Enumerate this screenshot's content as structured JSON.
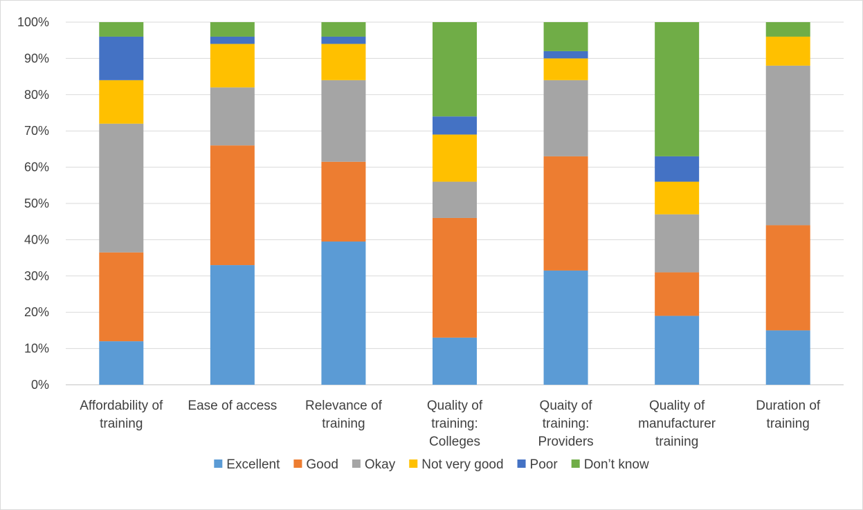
{
  "chart_data": {
    "type": "bar",
    "stacked": true,
    "percent": true,
    "title": "",
    "xlabel": "",
    "ylabel": "",
    "ylim": [
      0,
      100
    ],
    "y_ticks": [
      "0%",
      "10%",
      "20%",
      "30%",
      "40%",
      "50%",
      "60%",
      "70%",
      "80%",
      "90%",
      "100%"
    ],
    "grid": true,
    "legend_position": "bottom",
    "categories": [
      [
        "Affordability of",
        "training"
      ],
      [
        "Ease of access"
      ],
      [
        "Relevance of",
        "training"
      ],
      [
        "Quality of",
        "training:",
        "Colleges"
      ],
      [
        "Quaity of",
        "training:",
        "Providers"
      ],
      [
        "Quality of",
        "manufacturer",
        "training"
      ],
      [
        "Duration of",
        "training"
      ]
    ],
    "series": [
      {
        "name": "Excellent",
        "color": "#5b9bd5",
        "values": [
          12,
          33,
          39.5,
          13,
          31.5,
          19,
          15
        ]
      },
      {
        "name": "Good",
        "color": "#ed7d31",
        "values": [
          24.5,
          33,
          22,
          33,
          31.5,
          12,
          29
        ]
      },
      {
        "name": "Okay",
        "color": "#a5a5a5",
        "values": [
          35.5,
          16,
          22.5,
          10,
          21,
          16,
          44
        ]
      },
      {
        "name": "Not very good",
        "color": "#ffc000",
        "values": [
          12,
          12,
          10,
          13,
          6,
          9,
          8
        ]
      },
      {
        "name": "Poor",
        "color": "#4472c4",
        "values": [
          12,
          2,
          2,
          5,
          2,
          7,
          0
        ]
      },
      {
        "name": "Don’t know",
        "color": "#70ad47",
        "values": [
          4,
          4,
          4,
          26,
          8,
          37,
          4
        ]
      }
    ]
  }
}
